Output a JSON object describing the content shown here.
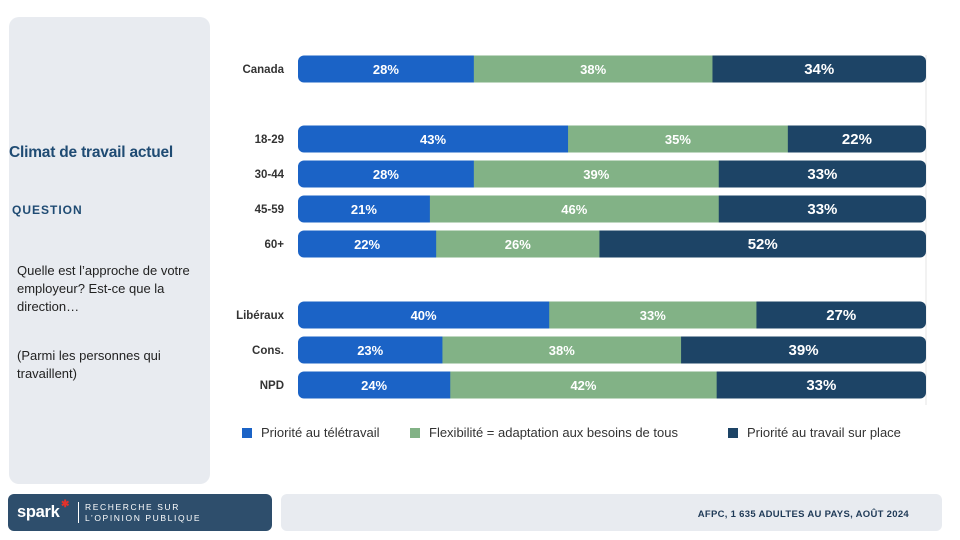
{
  "sidebar": {
    "title": "Climat de travail actuel",
    "question_heading": "QUESTION",
    "question_text": "Quelle est l’approche de votre employeur? Est-ce que la direction…",
    "note": "(Parmi les personnes qui travaillent)"
  },
  "logo": {
    "word": "spark",
    "line1": "RECHERCHE SUR",
    "line2": "L’OPINION PUBLIQUE"
  },
  "footer": {
    "source": "AFPC, 1 635 ADULTES AU PAYS, AOÛT 2024"
  },
  "colors": {
    "series1": "#1b63c6",
    "series2": "#82b286",
    "series3": "#1d4466"
  },
  "chart_data": {
    "type": "bar",
    "orientation": "horizontal",
    "stacked": true,
    "percent": true,
    "categories": [
      "Canada",
      "18-29",
      "30-44",
      "45-59",
      "60+",
      "Libéraux",
      "Cons.",
      "NPD"
    ],
    "series": [
      {
        "name": "Priorité au télétravail",
        "values": [
          28,
          43,
          28,
          21,
          22,
          40,
          23,
          24
        ]
      },
      {
        "name": "Flexibilité = adaptation aux besoins de tous",
        "values": [
          38,
          35,
          39,
          46,
          26,
          33,
          38,
          42
        ]
      },
      {
        "name": "Priorité au travail sur place",
        "values": [
          34,
          22,
          33,
          33,
          52,
          27,
          39,
          33
        ]
      }
    ],
    "data_labels": true,
    "legend": "bottom"
  }
}
